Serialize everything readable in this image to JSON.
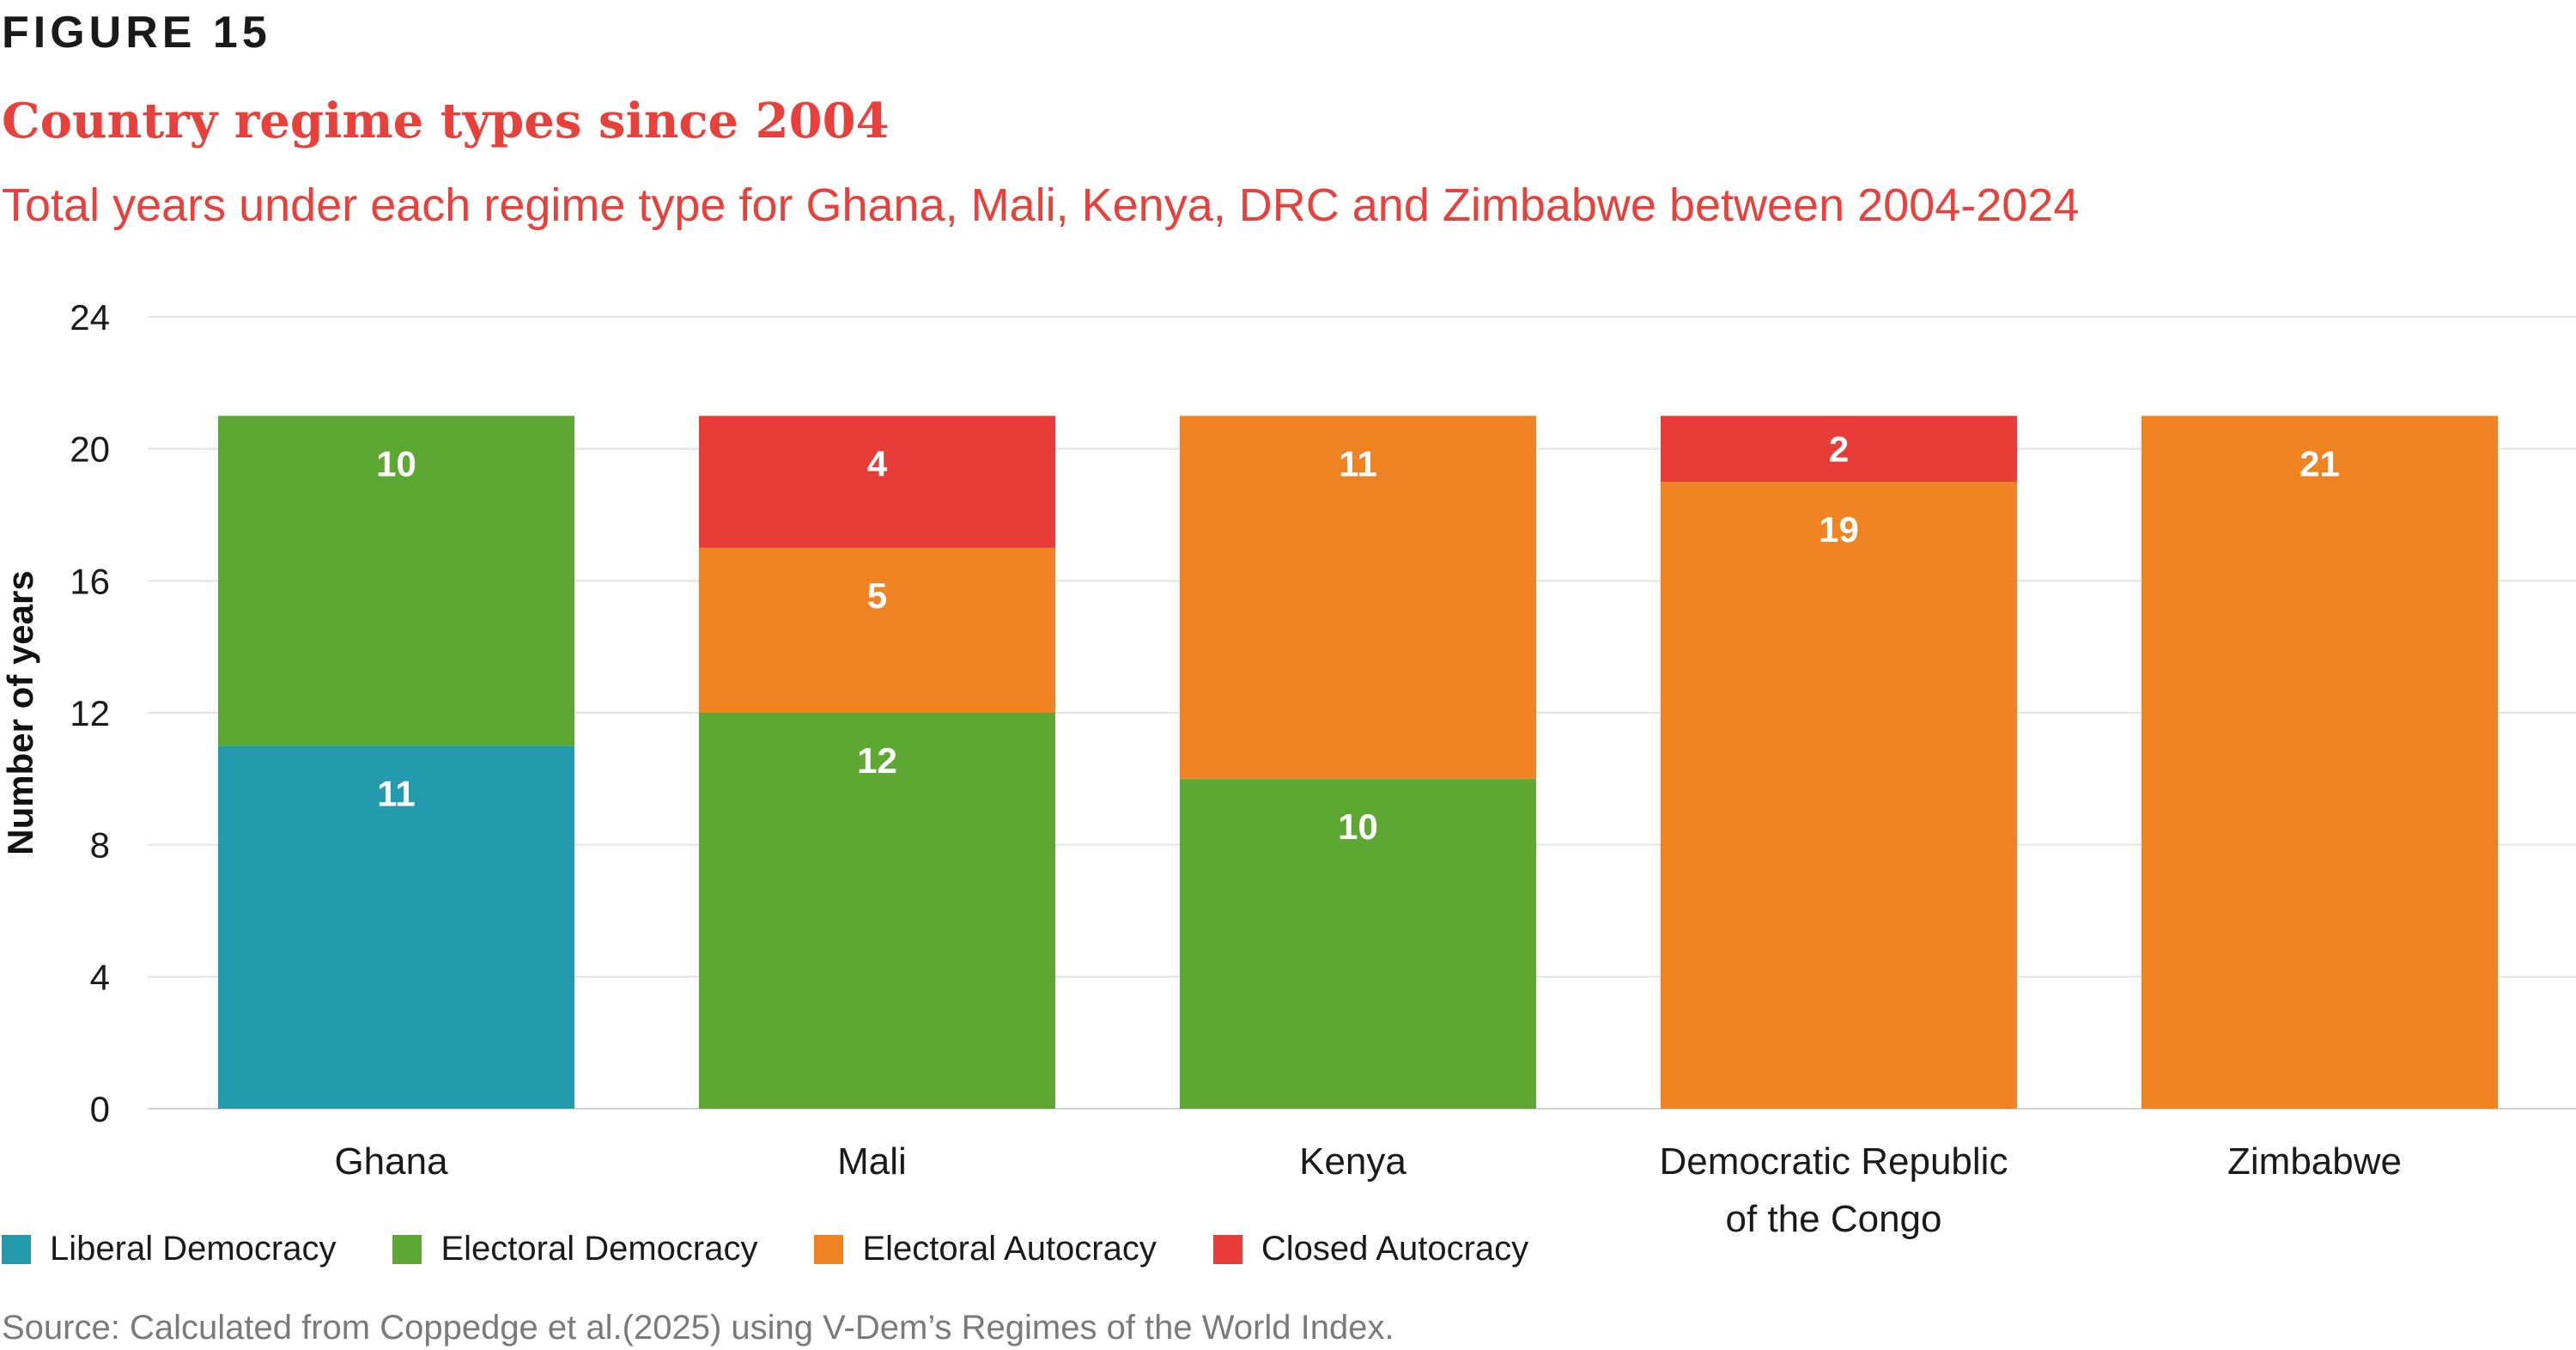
{
  "figure_label": "FIGURE 15",
  "source": "Source: Calculated from Coppedge et al.(2025) using V-Dem’s Regimes of the World Index.",
  "chart_data": {
    "type": "bar",
    "stacked": true,
    "title": "Country regime types since 2004",
    "subtitle": "Total years under each regime type for Ghana, Mali, Kenya, DRC and Zimbabwe between 2004-2024",
    "xlabel": "",
    "ylabel": "Number of years",
    "ylim": [
      0,
      24
    ],
    "yticks": [
      0,
      4,
      8,
      12,
      16,
      20,
      24
    ],
    "grid": true,
    "legend_position": "bottom-left",
    "categories": [
      "Ghana",
      "Mali",
      "Kenya",
      "Democratic Republic of the Congo",
      "Zimbabwe"
    ],
    "category_label_lines": [
      [
        "Ghana"
      ],
      [
        "Mali"
      ],
      [
        "Kenya"
      ],
      [
        "Democratic Republic",
        "of the Congo"
      ],
      [
        "Zimbabwe"
      ]
    ],
    "series": [
      {
        "name": "Liberal Democracy",
        "color": "#239BAD",
        "values": [
          11,
          0,
          0,
          0,
          0
        ]
      },
      {
        "name": "Electoral Democracy",
        "color": "#5DA832",
        "values": [
          10,
          12,
          10,
          0,
          0
        ]
      },
      {
        "name": "Electoral Autocracy",
        "color": "#EF8322",
        "values": [
          0,
          5,
          11,
          19,
          21
        ]
      },
      {
        "name": "Closed Autocracy",
        "color": "#E83C38",
        "values": [
          0,
          4,
          0,
          2,
          0
        ]
      }
    ]
  }
}
